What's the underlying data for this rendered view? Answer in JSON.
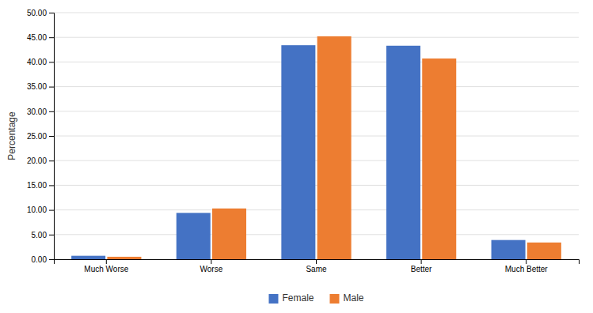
{
  "chart_data": {
    "type": "bar",
    "categories": [
      "Much Worse",
      "Worse",
      "Same",
      "Better",
      "Much Better"
    ],
    "series": [
      {
        "name": "Female",
        "color": "#4472C4",
        "values": [
          0.7,
          9.4,
          43.4,
          43.3,
          3.9
        ]
      },
      {
        "name": "Male",
        "color": "#ED7D31",
        "values": [
          0.5,
          10.3,
          45.2,
          40.7,
          3.4
        ]
      }
    ],
    "ylabel": "Percentage",
    "ylim": [
      0,
      50
    ],
    "yticks": [
      {
        "value": 0,
        "label": "0.00"
      },
      {
        "value": 5,
        "label": "5.00"
      },
      {
        "value": 10,
        "label": "10.00"
      },
      {
        "value": 15,
        "label": "15.00"
      },
      {
        "value": 20,
        "label": "20.00"
      },
      {
        "value": 25,
        "label": "25.00"
      },
      {
        "value": 30,
        "label": "30.00"
      },
      {
        "value": 35,
        "label": "35.00"
      },
      {
        "value": 40,
        "label": "40.00"
      },
      {
        "value": 45,
        "label": "45.00"
      },
      {
        "value": 50,
        "label": "50.00"
      }
    ],
    "grid": true,
    "legend": "bottom"
  }
}
